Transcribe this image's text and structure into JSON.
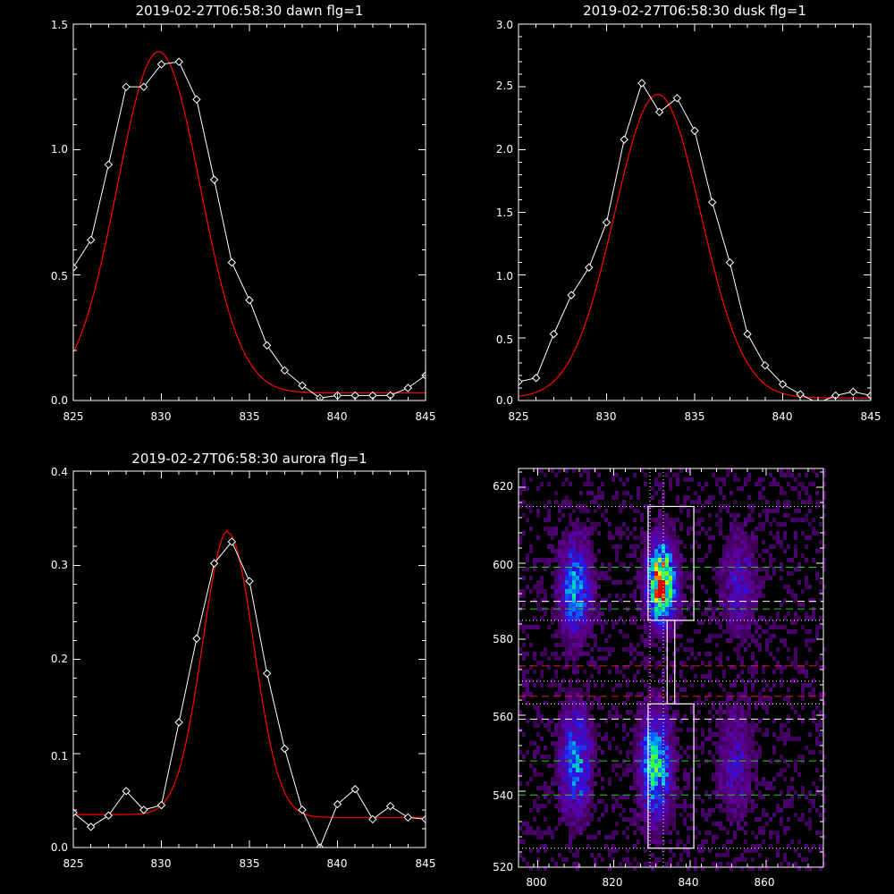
{
  "colors": {
    "background": "#000000",
    "axes": "#ffffff",
    "data_line": "#ffffff",
    "fit_line": "#ff0000",
    "green_dash": "#22cc22",
    "red_dash": "#dd2222",
    "white_dash": "#ffffff"
  },
  "chart_data": [
    {
      "id": "dawn",
      "type": "line",
      "title": "2019-02-27T06:58:30 dawn flg=1",
      "xlabel": "",
      "ylabel": "",
      "xlim": [
        825,
        845
      ],
      "ylim": [
        0,
        1.5
      ],
      "xticks": [
        825,
        830,
        835,
        840,
        845
      ],
      "xtick_labels": [
        "825",
        "830",
        "835",
        "840",
        "845"
      ],
      "yticks": [
        0,
        0.5,
        1.0,
        1.5
      ],
      "ytick_labels": [
        "0.0",
        "0.5",
        "1.0",
        "1.5"
      ],
      "grid": false,
      "series": [
        {
          "style": "data",
          "x": [
            825,
            826,
            827,
            828,
            829,
            830,
            831,
            832,
            833,
            834,
            835,
            836,
            837,
            838,
            839,
            840,
            841,
            842,
            843,
            844,
            845
          ],
          "y": [
            0.53,
            0.64,
            0.94,
            1.25,
            1.25,
            1.34,
            1.35,
            1.2,
            0.88,
            0.55,
            0.4,
            0.22,
            0.12,
            0.06,
            0.01,
            0.02,
            0.02,
            0.02,
            0.02,
            0.05,
            0.1
          ]
        },
        {
          "style": "fit",
          "model": "gaussian",
          "amplitude": 1.36,
          "center": 829.85,
          "sigma": 2.35,
          "offset": 0.03
        }
      ]
    },
    {
      "id": "dusk",
      "type": "line",
      "title": "2019-02-27T06:58:30 dusk flg=1",
      "xlabel": "",
      "ylabel": "",
      "xlim": [
        825,
        845
      ],
      "ylim": [
        0,
        3.0
      ],
      "xticks": [
        825,
        830,
        835,
        840,
        845
      ],
      "xtick_labels": [
        "825",
        "830",
        "835",
        "840",
        "845"
      ],
      "yticks": [
        0,
        0.5,
        1.0,
        1.5,
        2.0,
        2.5,
        3.0
      ],
      "ytick_labels": [
        "0.0",
        "0.5",
        "1.0",
        "1.5",
        "2.0",
        "2.5",
        "3.0"
      ],
      "grid": false,
      "series": [
        {
          "style": "data",
          "x": [
            825,
            826,
            827,
            828,
            829,
            830,
            831,
            832,
            833,
            834,
            835,
            836,
            837,
            838,
            839,
            840,
            841,
            842,
            843,
            844,
            845
          ],
          "y": [
            0.15,
            0.18,
            0.53,
            0.84,
            1.06,
            1.42,
            2.08,
            2.53,
            2.3,
            2.41,
            2.15,
            1.58,
            1.1,
            0.53,
            0.28,
            0.13,
            0.05,
            -0.02,
            0.04,
            0.07,
            0.04
          ]
        },
        {
          "style": "fit",
          "model": "gaussian",
          "amplitude": 2.42,
          "center": 832.9,
          "sigma": 2.45,
          "offset": 0.02
        }
      ]
    },
    {
      "id": "aurora",
      "type": "line",
      "title": "2019-02-27T06:58:30 aurora flg=1",
      "xlabel": "",
      "ylabel": "",
      "xlim": [
        825,
        845
      ],
      "ylim": [
        0,
        0.4
      ],
      "xticks": [
        825,
        830,
        835,
        840,
        845
      ],
      "xtick_labels": [
        "825",
        "830",
        "835",
        "840",
        "845"
      ],
      "yticks": [
        0,
        0.1,
        0.2,
        0.3,
        0.4
      ],
      "ytick_labels": [
        "0.0",
        "0.1",
        "0.2",
        "0.3",
        "0.4"
      ],
      "grid": false,
      "series": [
        {
          "style": "data",
          "x": [
            825,
            826,
            827,
            828,
            829,
            830,
            831,
            832,
            833,
            834,
            835,
            836,
            837,
            838,
            839,
            840,
            841,
            842,
            843,
            844,
            845
          ],
          "y": [
            0.037,
            0.022,
            0.034,
            0.06,
            0.04,
            0.045,
            0.133,
            0.222,
            0.302,
            0.325,
            0.283,
            0.185,
            0.105,
            0.04,
            0.0,
            0.046,
            0.062,
            0.03,
            0.044,
            0.032,
            0.03
          ]
        },
        {
          "style": "fit",
          "model": "gaussian",
          "amplitude": 0.302,
          "center": 833.8,
          "sigma": 1.45,
          "offset_left": 0.035,
          "offset_right": 0.032
        }
      ]
    },
    {
      "id": "image",
      "type": "heatmap",
      "title": "",
      "xlabel": "",
      "ylabel": "",
      "xlim": [
        795,
        875
      ],
      "ylim": [
        520,
        625
      ],
      "xticks": [
        800,
        820,
        840,
        860
      ],
      "xtick_labels": [
        "800",
        "820",
        "840",
        "860"
      ],
      "yticks": [
        520,
        540,
        560,
        580,
        600,
        620
      ],
      "ytick_labels": [
        "520",
        "540",
        "560",
        "580",
        "600",
        "620"
      ],
      "grid": false,
      "colormap": "rainbow",
      "blobs": [
        {
          "x": 810,
          "y": 593,
          "sx": 2.6,
          "sy": 8,
          "amp": 0.45
        },
        {
          "x": 810,
          "y": 548,
          "sx": 2.6,
          "sy": 9,
          "amp": 0.4
        },
        {
          "x": 832.5,
          "y": 595,
          "sx": 2.3,
          "sy": 6.5,
          "amp": 1.0
        },
        {
          "x": 831,
          "y": 547,
          "sx": 2.6,
          "sy": 9,
          "amp": 0.55
        },
        {
          "x": 853,
          "y": 594,
          "sx": 3,
          "sy": 9,
          "amp": 0.18
        },
        {
          "x": 852,
          "y": 548,
          "sx": 3,
          "sy": 9,
          "amp": 0.18
        }
      ],
      "boxes": [
        {
          "x0": 829,
          "x1": 841,
          "y0": 585,
          "y1": 615
        },
        {
          "x0": 829,
          "x1": 841,
          "y0": 525,
          "y1": 563
        },
        {
          "x0": 834,
          "x1": 836,
          "y0": 563,
          "y1": 585
        }
      ],
      "vlines_dotted": [
        829.5,
        833
      ],
      "hlines": [
        {
          "y": 615,
          "color": "white",
          "style": "dotted"
        },
        {
          "y": 599,
          "color": "green",
          "style": "dashed"
        },
        {
          "y": 590,
          "color": "white",
          "style": "dashed"
        },
        {
          "y": 588,
          "color": "green",
          "style": "dashed"
        },
        {
          "y": 585,
          "color": "white",
          "style": "dotted"
        },
        {
          "y": 573,
          "color": "red",
          "style": "dashed"
        },
        {
          "y": 569,
          "color": "white",
          "style": "dotted"
        },
        {
          "y": 565,
          "color": "red",
          "style": "dashed"
        },
        {
          "y": 563,
          "color": "white",
          "style": "dotted"
        },
        {
          "y": 559,
          "color": "white",
          "style": "dashed"
        },
        {
          "y": 548,
          "color": "green",
          "style": "dashed"
        },
        {
          "y": 539,
          "color": "green",
          "style": "dashed"
        },
        {
          "y": 525,
          "color": "white",
          "style": "dotted"
        }
      ]
    }
  ]
}
